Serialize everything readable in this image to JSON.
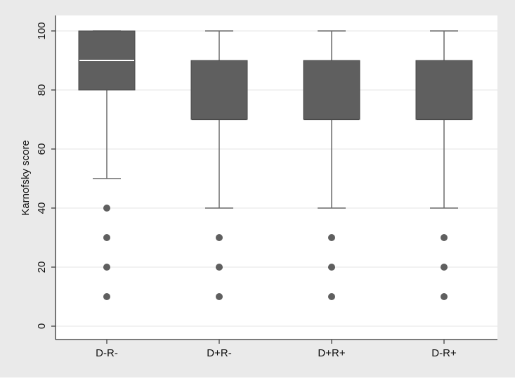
{
  "chart_data": {
    "type": "box",
    "title": "",
    "xlabel": "",
    "ylabel": "Karnofsky score",
    "ylim": [
      0,
      100
    ],
    "yticks": [
      0,
      20,
      40,
      60,
      80,
      100
    ],
    "grid": true,
    "legend": "none",
    "categories": [
      "D-R-",
      "D+R-",
      "D+R+",
      "D-R+"
    ],
    "boxes": [
      {
        "category": "D-R-",
        "whisker_low": 50,
        "q1": 80,
        "median": 90,
        "q3": 100,
        "whisker_high": 100,
        "outliers": [
          40,
          30,
          20,
          10
        ]
      },
      {
        "category": "D+R-",
        "whisker_low": 40,
        "q1": 70,
        "median": 70,
        "q3": 90,
        "whisker_high": 100,
        "outliers": [
          30,
          20,
          10
        ]
      },
      {
        "category": "D+R+",
        "whisker_low": 40,
        "q1": 70,
        "median": 70,
        "q3": 90,
        "whisker_high": 100,
        "outliers": [
          30,
          20,
          10
        ]
      },
      {
        "category": "D-R+",
        "whisker_low": 40,
        "q1": 70,
        "median": 70,
        "q3": 90,
        "whisker_high": 100,
        "outliers": [
          30,
          20,
          10
        ]
      }
    ],
    "colors": {
      "outer_background": "#eaeaea",
      "plot_background": "#ffffff",
      "gridline": "#e9e9e9",
      "box_fill": "#5f5f5f",
      "box_edge": "#4a4a4a",
      "median_line": "#ffffff",
      "whisker": "#6a6a6a",
      "outlier": "#5f5f5f",
      "axis": "#333333",
      "text": "#111111"
    }
  }
}
